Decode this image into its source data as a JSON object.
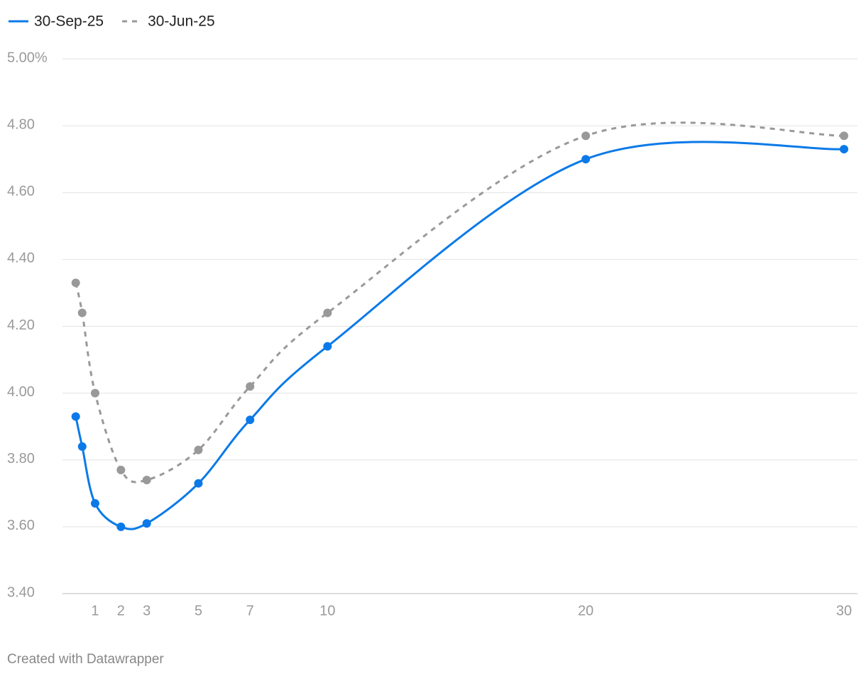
{
  "chart_data": {
    "type": "line",
    "x": [
      0.25,
      0.5,
      1,
      2,
      3,
      5,
      7,
      10,
      20,
      30
    ],
    "series": [
      {
        "name": "30-Sep-25",
        "color": "#0b7ae8",
        "dash": false,
        "values": [
          3.93,
          3.84,
          3.67,
          3.6,
          3.61,
          3.73,
          3.92,
          4.14,
          4.7,
          4.73
        ]
      },
      {
        "name": "30-Jun-25",
        "color": "#999999",
        "dash": true,
        "values": [
          4.33,
          4.24,
          4.0,
          3.77,
          3.74,
          3.83,
          4.02,
          4.24,
          4.77,
          4.77
        ]
      }
    ],
    "xlim": [
      0,
      30
    ],
    "xticks": [
      1,
      2,
      3,
      5,
      7,
      10,
      20,
      30
    ],
    "ylim": [
      3.4,
      5.0
    ],
    "yticks": [
      {
        "value": 3.4,
        "label": "3.40"
      },
      {
        "value": 3.6,
        "label": "3.60"
      },
      {
        "value": 3.8,
        "label": "3.80"
      },
      {
        "value": 4.0,
        "label": "4.00"
      },
      {
        "value": 4.2,
        "label": "4.20"
      },
      {
        "value": 4.4,
        "label": "4.40"
      },
      {
        "value": 4.6,
        "label": "4.60"
      },
      {
        "value": 4.8,
        "label": "4.80"
      },
      {
        "value": 5.0,
        "label": "5.00%"
      }
    ],
    "grid": true,
    "legend": "top-left",
    "footer": "Created with Datawrapper"
  }
}
